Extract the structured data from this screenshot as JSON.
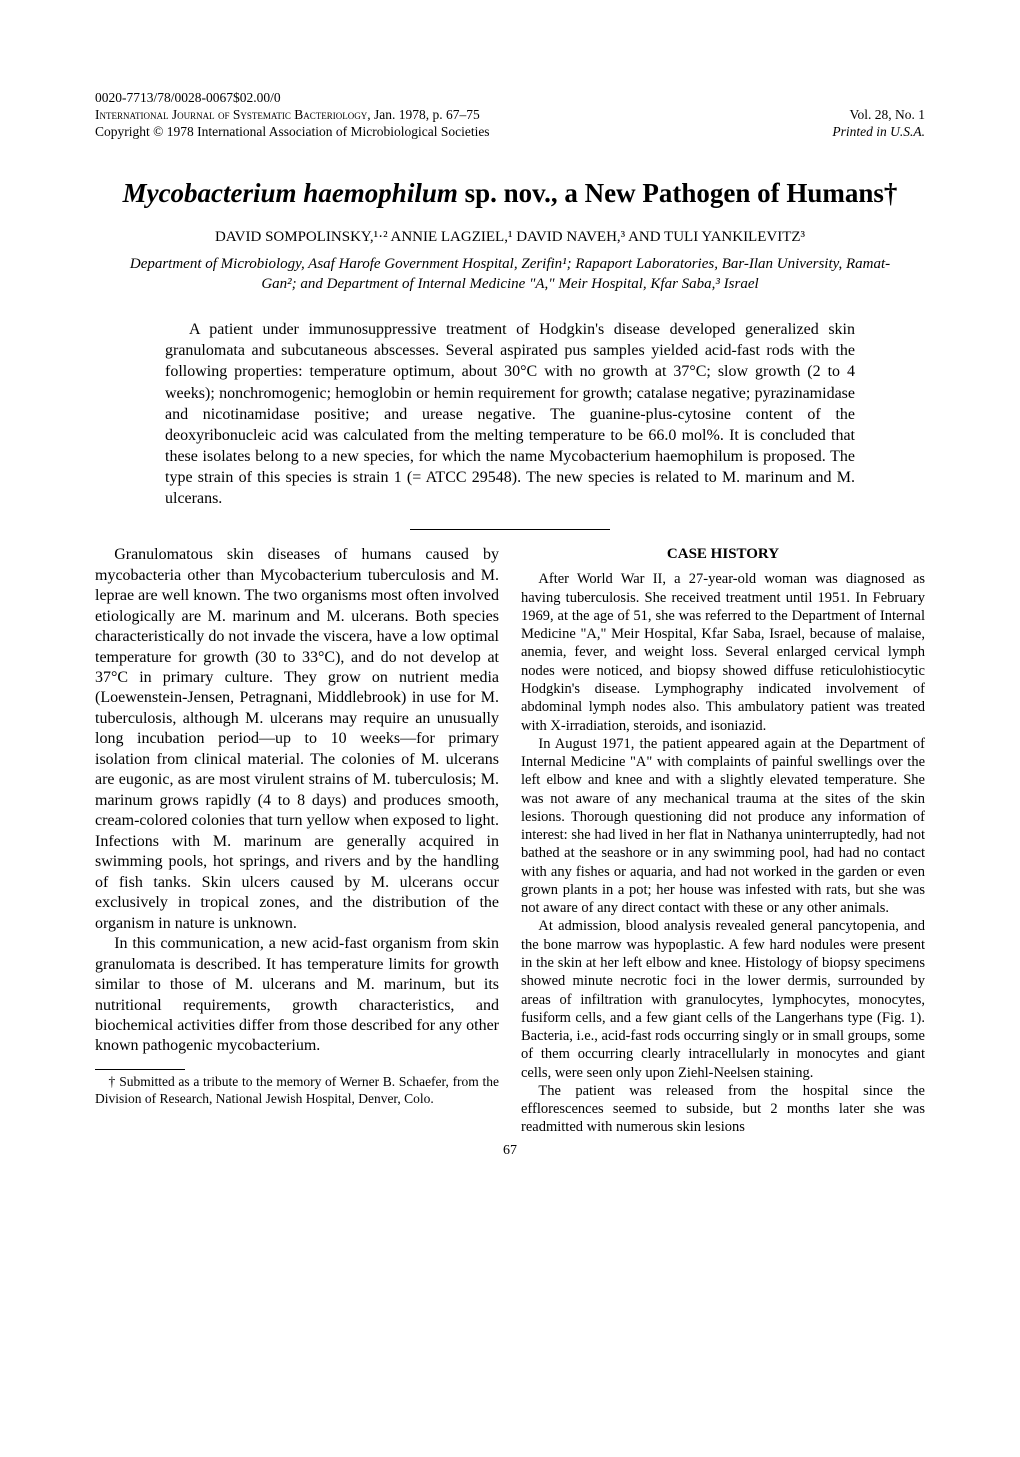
{
  "header": {
    "line1": "0020-7713/78/0028-0067$02.00/0",
    "journal_prefix": "International Journal of Systematic Bacteriology,",
    "journal_suffix": " Jan. 1978, p. 67–75",
    "copyright": "Copyright © 1978   International Association of Microbiological Societies",
    "volume": "Vol. 28, No. 1",
    "printed": "Printed in U.S.A."
  },
  "title_italic": "Mycobacterium haemophilum",
  "title_rest": " sp. nov., a New Pathogen of Humans†",
  "authors": "DAVID SOMPOLINSKY,¹·² ANNIE LAGZIEL,¹ DAVID NAVEH,³ AND TULI YANKILEVITZ³",
  "affiliations": "Department of Microbiology, Asaf Harofe Government Hospital, Zerifin¹; Rapaport Laboratories, Bar-Ilan University, Ramat-Gan²; and Department of Internal Medicine \"A,\" Meir Hospital, Kfar Saba,³ Israel",
  "abstract": "A patient under immunosuppressive treatment of Hodgkin's disease developed generalized skin granulomata and subcutaneous abscesses. Several aspirated pus samples yielded acid-fast rods with the following properties: temperature optimum, about 30°C with no growth at 37°C; slow growth (2 to 4 weeks); nonchromogenic; hemoglobin or hemin requirement for growth; catalase negative; pyrazinamidase and nicotinamidase positive; and urease negative. The guanine-plus-cytosine content of the deoxyribonucleic acid was calculated from the melting temperature to be 66.0 mol%. It is concluded that these isolates belong to a new species, for which the name Mycobacterium haemophilum is proposed. The type strain of this species is strain 1 (= ATCC 29548). The new species is related to M. marinum and M. ulcerans.",
  "leftcol": {
    "p1": "Granulomatous skin diseases of humans caused by mycobacteria other than Mycobacterium tuberculosis and M. leprae are well known. The two organisms most often involved etiologically are M. marinum and M. ulcerans. Both species characteristically do not invade the viscera, have a low optimal temperature for growth (30 to 33°C), and do not develop at 37°C in primary culture. They grow on nutrient media (Loewenstein-Jensen, Petragnani, Middlebrook) in use for M. tuberculosis, although M. ulcerans may require an unusually long incubation period—up to 10 weeks—for primary isolation from clinical material. The colonies of M. ulcerans are eugonic, as are most virulent strains of M. tuberculosis; M. marinum grows rapidly (4 to 8 days) and produces smooth, cream-colored colonies that turn yellow when exposed to light. Infections with M. marinum are generally acquired in swimming pools, hot springs, and rivers and by the handling of fish tanks. Skin ulcers caused by M. ulcerans occur exclusively in tropical zones, and the distribution of the organism in nature is unknown.",
    "p2": "In this communication, a new acid-fast organism from skin granulomata is described. It has temperature limits for growth similar to those of M. ulcerans and M. marinum, but its nutritional requirements, growth characteristics, and biochemical activities differ from those described for any other known pathogenic mycobacterium."
  },
  "footnote": "† Submitted as a tribute to the memory of Werner B. Schaefer, from the Division of Research, National Jewish Hospital, Denver, Colo.",
  "rightcol": {
    "heading": "CASE HISTORY",
    "p1": "After World War II, a 27-year-old woman was diagnosed as having tuberculosis. She received treatment until 1951. In February 1969, at the age of 51, she was referred to the Department of Internal Medicine \"A,\" Meir Hospital, Kfar Saba, Israel, because of malaise, anemia, fever, and weight loss. Several enlarged cervical lymph nodes were noticed, and biopsy showed diffuse reticulohistiocytic Hodgkin's disease. Lymphography indicated involvement of abdominal lymph nodes also. This ambulatory patient was treated with X-irradiation, steroids, and isoniazid.",
    "p2": "In August 1971, the patient appeared again at the Department of Internal Medicine \"A\" with complaints of painful swellings over the left elbow and knee and with a slightly elevated temperature. She was not aware of any mechanical trauma at the sites of the skin lesions. Thorough questioning did not produce any information of interest: she had lived in her flat in Nathanya uninterruptedly, had not bathed at the seashore or in any swimming pool, had had no contact with any fishes or aquaria, and had not worked in the garden or even grown plants in a pot; her house was infested with rats, but she was not aware of any direct contact with these or any other animals.",
    "p3": "At admission, blood analysis revealed general pancytopenia, and the bone marrow was hypoplastic. A few hard nodules were present in the skin at her left elbow and knee. Histology of biopsy specimens showed minute necrotic foci in the lower dermis, surrounded by areas of infiltration with granulocytes, lymphocytes, monocytes, fusiform cells, and a few giant cells of the Langerhans type (Fig. 1). Bacteria, i.e., acid-fast rods occurring singly or in small groups, some of them occurring clearly intracellularly in monocytes and giant cells, were seen only upon Ziehl-Neelsen staining.",
    "p4": "The patient was released from the hospital since the efflorescences seemed to subside, but 2 months later she was readmitted with numerous skin lesions"
  },
  "pagenum": "67"
}
